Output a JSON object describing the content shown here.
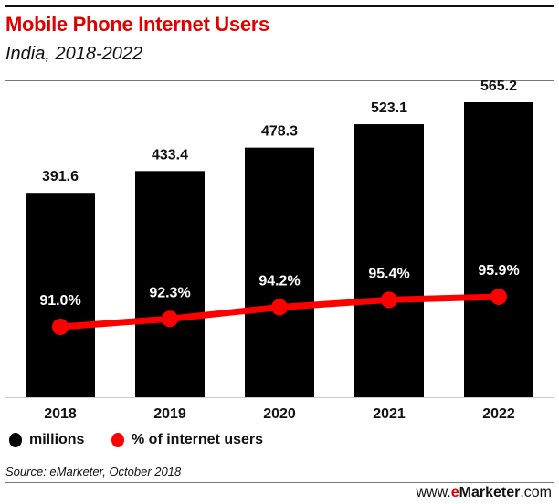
{
  "header": {
    "title": "Mobile Phone Internet Users",
    "subtitle": "India, 2018-2022"
  },
  "chart_data": {
    "type": "bar+line",
    "categories": [
      "2018",
      "2019",
      "2020",
      "2021",
      "2022"
    ],
    "series": [
      {
        "name": "millions",
        "type": "bar",
        "color": "#000000",
        "values": [
          391.6,
          433.4,
          478.3,
          523.1,
          565.2
        ],
        "labels": [
          "391.6",
          "433.4",
          "478.3",
          "523.1",
          "565.2"
        ]
      },
      {
        "name": "% of internet users",
        "type": "line",
        "color": "#ff0000",
        "values": [
          91.0,
          92.3,
          94.2,
          95.4,
          95.9
        ],
        "labels": [
          "91.0%",
          "92.3%",
          "94.2%",
          "95.4%",
          "95.9%"
        ]
      }
    ],
    "legend": "bottom-left",
    "grid": false
  },
  "footer": {
    "source": "Source: eMarketer, October 2018",
    "brand_prefix": "www.",
    "brand_e": "e",
    "brand_name": "Marketer",
    ".com_suffix": ".com",
    "brand_suffix": ".com"
  }
}
